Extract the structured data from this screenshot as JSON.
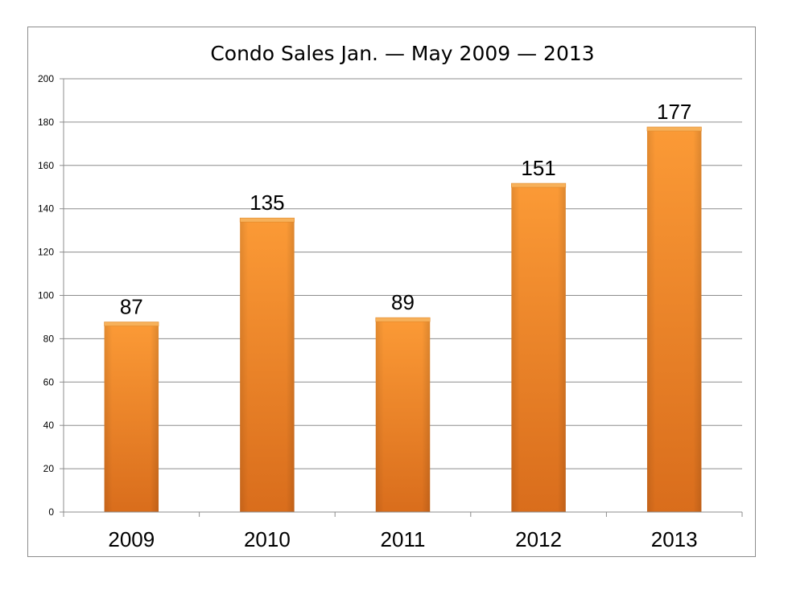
{
  "chart_data": {
    "type": "bar",
    "title": "Condo Sales Jan. — May 2009 — 2013",
    "xlabel": "",
    "ylabel": "",
    "categories": [
      "2009",
      "2010",
      "2011",
      "2012",
      "2013"
    ],
    "values": [
      87,
      135,
      89,
      151,
      177
    ],
    "data_labels": [
      "87",
      "135",
      "89",
      "151",
      "177"
    ],
    "ylim": [
      0,
      200
    ],
    "yticks": [
      0,
      20,
      40,
      60,
      80,
      100,
      120,
      140,
      160,
      180,
      200
    ],
    "grid": true,
    "legend": "none",
    "bar_color": "#f28c28",
    "bar_color_dark": "#d9691a",
    "gridline_color": "#8c8c8c"
  }
}
